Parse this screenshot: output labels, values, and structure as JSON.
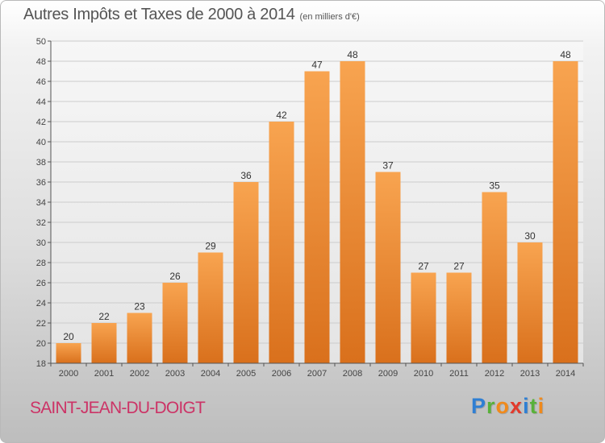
{
  "header": {
    "title": "Autres Impôts et Taxes de 2000 à 2014",
    "unit": "(en milliers d'€)"
  },
  "footer": {
    "town": "SAINT-JEAN-DU-DOIGT",
    "logo_letters": [
      "P",
      "r",
      "o",
      "x",
      "i",
      "t",
      "i"
    ],
    "logo_colors": [
      "#2f7fd3",
      "#59b13a",
      "#f08a1c",
      "#e23a2c",
      "#2f7fd3",
      "#59b13a",
      "#f08a1c"
    ]
  },
  "colors": {
    "bar_light": "#f8a450",
    "bar_dark": "#d9701c",
    "grid": "#cccccc",
    "axis": "#555555",
    "town": "#cc3366"
  },
  "chart_data": {
    "type": "bar",
    "title": "Autres Impôts et Taxes de 2000 à 2014",
    "subtitle": "(en milliers d'€)",
    "xlabel": "",
    "ylabel": "",
    "categories": [
      "2000",
      "2001",
      "2002",
      "2003",
      "2004",
      "2005",
      "2006",
      "2007",
      "2008",
      "2009",
      "2010",
      "2011",
      "2012",
      "2013",
      "2014"
    ],
    "values": [
      20,
      22,
      23,
      26,
      29,
      36,
      42,
      47,
      48,
      37,
      27,
      27,
      35,
      30,
      48
    ],
    "ylim": [
      18,
      50
    ],
    "yticks": [
      18,
      20,
      22,
      24,
      26,
      28,
      30,
      32,
      34,
      36,
      38,
      40,
      42,
      44,
      46,
      48,
      50
    ],
    "grid": true,
    "data_labels": true
  }
}
